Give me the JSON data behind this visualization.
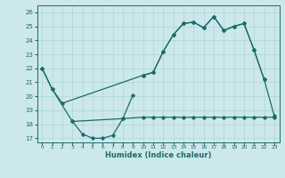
{
  "xlabel": "Humidex (Indice chaleur)",
  "bg_color": "#cce8ea",
  "grid_color": "#aed4d8",
  "line_color": "#1a6b6b",
  "xlim": [
    -0.5,
    23.5
  ],
  "ylim": [
    16.7,
    26.5
  ],
  "yticks": [
    17,
    18,
    19,
    20,
    21,
    22,
    23,
    24,
    25,
    26
  ],
  "xticks": [
    0,
    1,
    2,
    3,
    4,
    5,
    6,
    7,
    8,
    9,
    10,
    11,
    12,
    13,
    14,
    15,
    16,
    17,
    18,
    19,
    20,
    21,
    22,
    23
  ],
  "series1_x": [
    0,
    1,
    3,
    4,
    5,
    6,
    7,
    8,
    9
  ],
  "series1_y": [
    22.0,
    20.5,
    18.2,
    17.3,
    17.0,
    17.0,
    17.2,
    18.4,
    20.1
  ],
  "series2_x": [
    3,
    8,
    10,
    11,
    12,
    13,
    14,
    15,
    16,
    17,
    18,
    19,
    20,
    21,
    22,
    23
  ],
  "series2_y": [
    18.2,
    18.4,
    18.5,
    18.5,
    18.5,
    18.5,
    18.5,
    18.5,
    18.5,
    18.5,
    18.5,
    18.5,
    18.5,
    18.5,
    18.5,
    18.5
  ],
  "series3_x": [
    0,
    1,
    2,
    10,
    11,
    12,
    13,
    14,
    15,
    16,
    17,
    18,
    19,
    20,
    21,
    22
  ],
  "series3_y": [
    22.0,
    20.5,
    19.5,
    21.5,
    21.7,
    23.2,
    24.4,
    25.2,
    25.3,
    24.9,
    25.7,
    24.7,
    25.0,
    25.2,
    23.3,
    21.2
  ],
  "series4_x": [
    10,
    11,
    12,
    13,
    14,
    15,
    16,
    17,
    18,
    19,
    20,
    21,
    22,
    23
  ],
  "series4_y": [
    21.5,
    21.7,
    23.2,
    24.4,
    25.2,
    25.3,
    24.9,
    25.7,
    24.7,
    25.0,
    25.2,
    23.3,
    21.2,
    18.6
  ]
}
